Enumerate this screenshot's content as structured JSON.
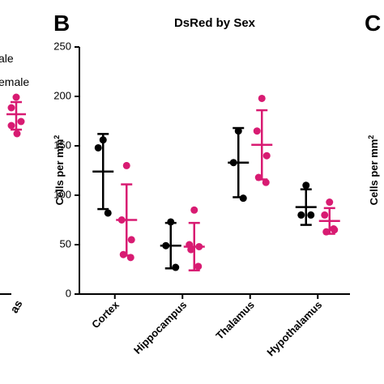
{
  "chart_data": {
    "type": "scatter_errorbar",
    "panel_letter": "B",
    "title": "DsRed by Sex",
    "y_label": "Cells per mm",
    "y_label_sup": "2",
    "categories": [
      "Cortex",
      "Hippocampus",
      "Thalamus",
      "Hypothalamus"
    ],
    "ylim": [
      0,
      250
    ],
    "yticks": [
      0,
      50,
      100,
      150,
      200,
      250
    ],
    "series": [
      {
        "name": "Male",
        "color": "#000000",
        "points": [
          [
            156,
            148,
            82
          ],
          [
            73,
            49,
            27
          ],
          [
            165,
            133,
            97
          ],
          [
            110,
            80,
            80
          ]
        ],
        "mean": [
          124,
          49,
          133,
          88
        ],
        "sd": [
          38,
          23,
          35,
          18
        ]
      },
      {
        "name": "Female",
        "color": "#d81b72",
        "points": [
          [
            130,
            75,
            55,
            40,
            37
          ],
          [
            85,
            50,
            48,
            45,
            28
          ],
          [
            198,
            165,
            140,
            118,
            113
          ],
          [
            93,
            80,
            65,
            63,
            66
          ]
        ],
        "mean": [
          75,
          48,
          151,
          74
        ],
        "sd": [
          36,
          24,
          35,
          13
        ]
      }
    ]
  },
  "fragments": {
    "legend_male": "ale",
    "legend_female": "emale",
    "left_category": "as",
    "right_letter": "C",
    "right_y_label": "Cells per mm",
    "right_y_label_sup": "2"
  }
}
